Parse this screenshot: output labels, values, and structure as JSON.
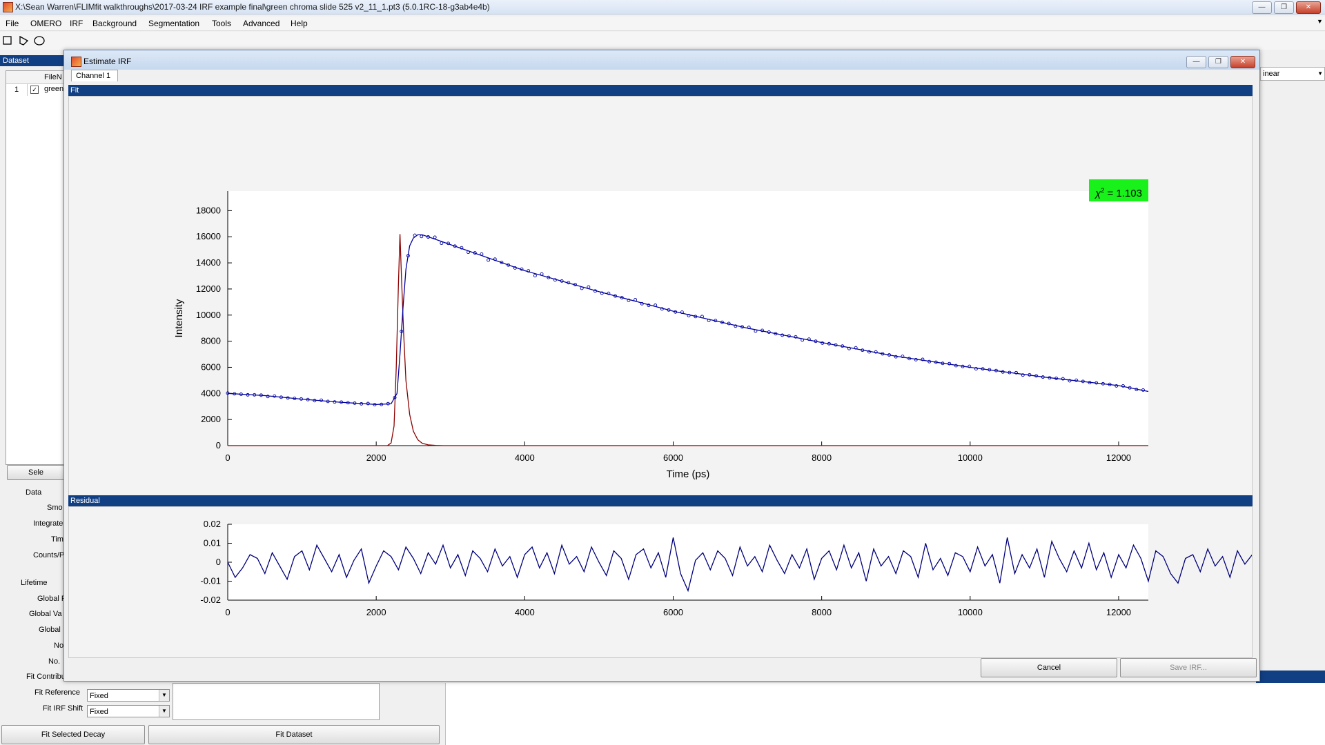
{
  "window": {
    "title": "X:\\Sean Warren\\FLIMfit walkthroughs\\2017-03-24 IRF example final\\green chroma slide 525 v2_11_1.pt3 (5.0.1RC-18-g3ab4e4b)"
  },
  "menu": [
    "File",
    "OMERO",
    "IRF",
    "Background",
    "Segmentation",
    "Tools",
    "Advanced",
    "Help"
  ],
  "left_panel": {
    "header": "Dataset",
    "table_col": "FileN",
    "row_index": "1",
    "row_file": "green",
    "select_button": "Sele",
    "labels": {
      "data": "Data",
      "smo": "Smo",
      "integrate": "Integrate",
      "tim": "Tim",
      "counts": "Counts/P",
      "lifetime": "Lifetime",
      "global1": "Global F",
      "global2": "Global Va",
      "global3": "Global",
      "no1": "No",
      "no2": "No.",
      "fit_contrib": "Fit Contribu",
      "fit_reference": "Fit Reference",
      "fit_irf_shift": "Fit IRF Shift"
    },
    "fit_reference_value": "Fixed",
    "fit_irf_shift_value": "Fixed",
    "fit_selected_decay": "Fit Selected Decay",
    "fit_dataset": "Fit Dataset"
  },
  "right_panel": {
    "scale_select": "inear"
  },
  "dialog": {
    "title": "Estimate IRF",
    "tab": "Channel 1",
    "fit_header": "Fit",
    "residual_header": "Residual",
    "chi_label": "χ",
    "chi_sup": "2",
    "chi_value": " = 1.103",
    "cancel": "Cancel",
    "save_irf": "Save IRF..."
  },
  "chart_data": [
    {
      "type": "line",
      "panel": "Fit",
      "xlabel": "Time (ps)",
      "ylabel": "Intensity",
      "xlim": [
        0,
        12400
      ],
      "ylim": [
        0,
        19500
      ],
      "xticks": [
        0,
        2000,
        4000,
        6000,
        8000,
        10000,
        12000
      ],
      "yticks": [
        0,
        2000,
        4000,
        6000,
        8000,
        10000,
        12000,
        14000,
        16000,
        18000
      ],
      "series": [
        {
          "color": "#8b0000",
          "x": [
            0,
            2150,
            2200,
            2240,
            2270,
            2300,
            2320,
            2340,
            2370,
            2400,
            2450,
            2500,
            2560,
            2620,
            2700,
            2800,
            2900,
            12400
          ],
          "y": [
            0,
            0,
            200,
            1500,
            6000,
            12500,
            16200,
            13000,
            8500,
            5000,
            2400,
            1100,
            450,
            180,
            60,
            15,
            0,
            0
          ]
        },
        {
          "color": "#0000a0",
          "x": [
            0,
            500,
            1000,
            1500,
            2000,
            2200,
            2280,
            2320,
            2360,
            2400,
            2450,
            2500,
            2560,
            2620,
            2700,
            3000,
            4000,
            5000,
            6000,
            7000,
            8000,
            9000,
            10000,
            11000,
            12000,
            12400
          ],
          "y": [
            4000,
            3830,
            3560,
            3330,
            3150,
            3200,
            4000,
            7000,
            10500,
            13500,
            15300,
            15900,
            16150,
            16150,
            16000,
            15400,
            13400,
            11800,
            10300,
            9000,
            7900,
            6850,
            6000,
            5250,
            4600,
            4150
          ]
        }
      ]
    },
    {
      "type": "line",
      "panel": "Residual",
      "xlim": [
        0,
        12400
      ],
      "ylim": [
        -0.02,
        0.02
      ],
      "xticks": [
        0,
        2000,
        4000,
        6000,
        8000,
        10000,
        12000
      ],
      "yticks": [
        -0.02,
        -0.01,
        0,
        0.01,
        0.02
      ],
      "series": [
        {
          "color": "#00007a",
          "x_start": 0,
          "x_step": 100,
          "y": [
            0.0,
            -0.008,
            -0.003,
            0.004,
            0.002,
            -0.006,
            0.005,
            -0.002,
            -0.009,
            0.003,
            0.006,
            -0.004,
            0.009,
            0.002,
            -0.005,
            0.004,
            -0.008,
            0.001,
            0.007,
            -0.011,
            -0.002,
            0.006,
            0.003,
            -0.004,
            0.008,
            0.002,
            -0.006,
            0.005,
            -0.001,
            0.009,
            -0.003,
            0.004,
            -0.007,
            0.006,
            0.002,
            -0.005,
            0.007,
            -0.002,
            0.003,
            -0.008,
            0.004,
            0.008,
            -0.003,
            0.005,
            -0.006,
            0.009,
            -0.001,
            0.003,
            -0.005,
            0.008,
            0.0,
            -0.007,
            0.006,
            0.002,
            -0.009,
            0.004,
            0.007,
            -0.003,
            0.005,
            -0.008,
            0.013,
            -0.006,
            -0.015,
            0.001,
            0.005,
            -0.004,
            0.006,
            0.002,
            -0.007,
            0.008,
            -0.002,
            0.003,
            -0.005,
            0.009,
            0.001,
            -0.006,
            0.004,
            -0.003,
            0.007,
            -0.009,
            0.002,
            0.006,
            -0.004,
            0.009,
            -0.003,
            0.005,
            -0.01,
            0.007,
            -0.002,
            0.003,
            -0.006,
            0.006,
            0.003,
            -0.008,
            0.01,
            -0.004,
            0.002,
            -0.007,
            0.005,
            0.003,
            -0.005,
            0.008,
            -0.002,
            0.004,
            -0.011,
            0.013,
            -0.006,
            0.004,
            -0.003,
            0.007,
            -0.008,
            0.011,
            0.002,
            -0.005,
            0.006,
            -0.003,
            0.01,
            -0.004,
            0.005,
            -0.008,
            0.004,
            -0.003,
            0.009,
            0.002,
            -0.01,
            0.006,
            0.003,
            -0.006,
            -0.011,
            0.002,
            0.004,
            -0.005,
            0.007,
            -0.002,
            0.003,
            -0.008,
            0.006,
            -0.001,
            0.004,
            0.007,
            -0.003,
            0.002,
            -0.004,
            0.007,
            -0.009
          ]
        }
      ]
    }
  ]
}
